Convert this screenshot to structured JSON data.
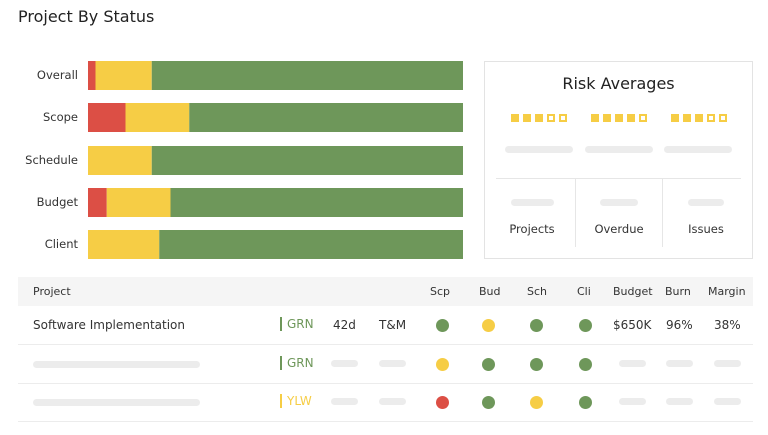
{
  "title": "Project By Status",
  "colors": {
    "red": "#dc4f45",
    "yellow": "#f6cd45",
    "green": "#6e975a"
  },
  "chart_data": {
    "type": "bar",
    "orientation": "horizontal",
    "stacked": true,
    "categories": [
      "Overall",
      "Scope",
      "Schedule",
      "Budget",
      "Client"
    ],
    "series": [
      {
        "color": "red",
        "values": [
          2,
          10,
          0,
          5,
          0
        ]
      },
      {
        "color": "yellow",
        "values": [
          15,
          17,
          17,
          17,
          19
        ]
      },
      {
        "color": "green",
        "values": [
          83,
          73,
          83,
          78,
          81
        ]
      }
    ],
    "xlim": [
      0,
      100
    ]
  },
  "risk": {
    "title": "Risk Averages",
    "ratings": [
      3,
      4,
      3
    ],
    "max": 5,
    "stats": [
      "Projects",
      "Overdue",
      "Issues"
    ]
  },
  "table": {
    "headers": {
      "project": "Project",
      "scp": "Scp",
      "bud": "Bud",
      "sch": "Sch",
      "cli": "Cli",
      "budget": "Budget",
      "burn": "Burn",
      "margin": "Margin"
    },
    "rows": [
      {
        "project": "Software Implementation",
        "status": "GRN",
        "status_color": "green",
        "duration": "42d",
        "type": "T&M",
        "scp": "green",
        "bud": "yellow",
        "sch": "green",
        "cli": "green",
        "budget": "$650K",
        "burn": "96%",
        "margin": "38%"
      },
      {
        "project": "",
        "status": "GRN",
        "status_color": "green",
        "scp": "yellow",
        "bud": "green",
        "sch": "green",
        "cli": "green"
      },
      {
        "project": "",
        "status": "YLW",
        "status_color": "yellow",
        "scp": "red",
        "bud": "green",
        "sch": "yellow",
        "cli": "green"
      }
    ]
  }
}
